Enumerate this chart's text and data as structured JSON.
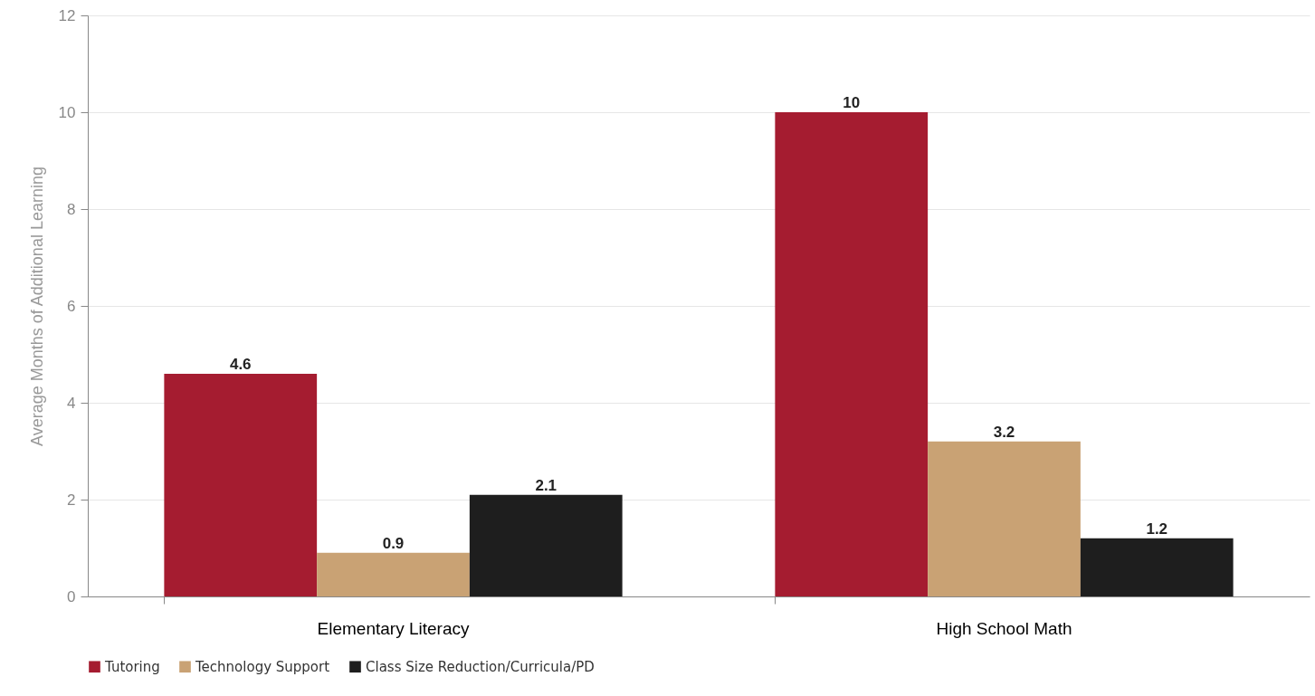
{
  "chart_data": {
    "type": "bar",
    "ylabel": "Average Months of Additional Learning",
    "categories": [
      "Elementary Literacy",
      "High School Math"
    ],
    "series": [
      {
        "name": "Tutoring",
        "color": "#a51c30",
        "values": [
          4.6,
          10
        ]
      },
      {
        "name": "Technology Support",
        "color": "#c9a274",
        "values": [
          0.9,
          3.2
        ]
      },
      {
        "name": "Class Size Reduction/Curricula/PD",
        "color": "#1e1e1e",
        "values": [
          2.1,
          1.2
        ]
      }
    ],
    "ylim": [
      0,
      12
    ],
    "yticks": [
      0,
      2,
      4,
      6,
      8,
      10,
      12
    ],
    "grid": "y",
    "legend": "bottom",
    "data_labels": true
  }
}
